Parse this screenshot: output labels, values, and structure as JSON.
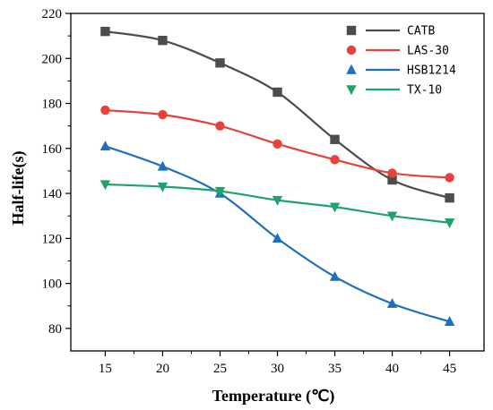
{
  "chart_data": {
    "type": "line",
    "xlabel": "Temperature (℃)",
    "ylabel": "Half-life(s)",
    "xlim": [
      12,
      48
    ],
    "ylim": [
      70,
      220
    ],
    "xticks": [
      15,
      20,
      25,
      30,
      35,
      40,
      45
    ],
    "yticks": [
      80,
      100,
      120,
      140,
      160,
      180,
      200,
      220
    ],
    "grid": false,
    "legend_position": "top-right",
    "x": [
      15,
      20,
      25,
      30,
      35,
      40,
      45
    ],
    "series": [
      {
        "name": "CATB",
        "marker": "square",
        "color": "#4d4d4d",
        "values": [
          212,
          208,
          198,
          185,
          164,
          146,
          138
        ]
      },
      {
        "name": "LAS-30",
        "marker": "circle",
        "color": "#e8413c",
        "values": [
          177,
          175,
          170,
          162,
          155,
          149,
          147
        ]
      },
      {
        "name": "HSB1214",
        "marker": "triangle-up",
        "color": "#1f6fbf",
        "values": [
          161,
          152,
          140,
          120,
          103,
          91,
          83
        ]
      },
      {
        "name": "TX-10",
        "marker": "triangle-down",
        "color": "#1fa36b",
        "values": [
          144,
          143,
          141,
          137,
          134,
          130,
          127
        ]
      }
    ]
  }
}
